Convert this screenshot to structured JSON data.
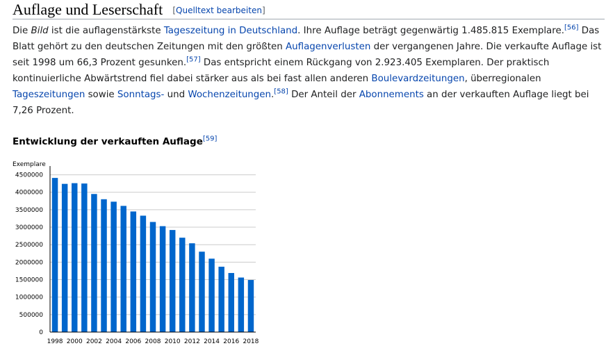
{
  "section": {
    "title": "Auflage und Leserschaft",
    "edit_open": "[",
    "edit_label": "Quelltext bearbeiten",
    "edit_close": "]"
  },
  "paragraph": {
    "t1": "Die ",
    "t2": "Bild",
    "t3": " ist die auflagenstärkste ",
    "l1": "Tageszeitung in Deutschland",
    "t4": ". Ihre Auflage beträgt gegenwärtig 1.485.815 Exemplare.",
    "r56": "[56]",
    "t5": " Das Blatt gehört zu den deutschen Zeitungen mit den größten ",
    "l2": "Auflagenverlusten",
    "t6": " der vergangenen Jahre. Die verkaufte Auflage ist seit 1998 um 66,3 Prozent gesunken.",
    "r57": "[57]",
    "t7": " Das entspricht einem Rückgang von 2.923.405 Exemplaren. Der praktisch kontinuierliche Abwärtstrend fiel dabei stärker aus als bei fast allen anderen ",
    "l3": "Boulevardzeitungen",
    "t8": ", überregionalen ",
    "l4": "Tageszeitungen",
    "t9": " sowie ",
    "l5": "Sonntags-",
    "t10": " und ",
    "l6": "Wochenzeitungen",
    "t11": ".",
    "r58": "[58]",
    "t12": " Der Anteil der ",
    "l7": "Abonnements",
    "t13": " an der verkauften Auflage liegt bei 7,26 Prozent."
  },
  "subsection": {
    "title": "Entwicklung der verkauften Auflage",
    "ref": "[59]"
  },
  "chart_data": {
    "type": "bar",
    "ylabel": "Exemplare",
    "ylim": [
      0,
      4750000
    ],
    "yticks": [
      0,
      500000,
      1000000,
      1500000,
      2000000,
      2500000,
      3000000,
      3500000,
      4000000,
      4500000
    ],
    "categories": [
      "1998",
      "1999",
      "2000",
      "2001",
      "2002",
      "2003",
      "2004",
      "2005",
      "2006",
      "2007",
      "2008",
      "2009",
      "2010",
      "2011",
      "2012",
      "2013",
      "2014",
      "2015",
      "2016",
      "2017",
      "2018"
    ],
    "xticks": [
      "1998",
      "2000",
      "2002",
      "2004",
      "2006",
      "2008",
      "2010",
      "2012",
      "2014",
      "2016",
      "2018"
    ],
    "values": [
      4410000,
      4240000,
      4260000,
      4250000,
      3950000,
      3800000,
      3730000,
      3610000,
      3450000,
      3330000,
      3150000,
      3030000,
      2920000,
      2700000,
      2540000,
      2300000,
      2100000,
      1870000,
      1690000,
      1560000,
      1490000
    ],
    "grid": true,
    "bar_color": "#0066cc",
    "grid_color": "#cccccc"
  }
}
